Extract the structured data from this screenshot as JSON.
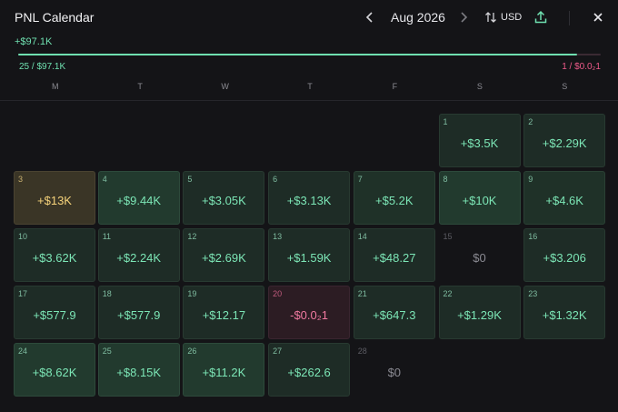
{
  "header": {
    "title": "PNL Calendar",
    "prev_icon": "chevron-left-icon",
    "month": "Aug 2026",
    "next_icon": "chevron-right-icon",
    "currency_icon": "swap-vertical-icon",
    "currency": "USD",
    "export_icon": "share-icon",
    "close_icon": "close-icon"
  },
  "summary": {
    "total": "+$97.1K",
    "win_ratio": 0.96,
    "win_text": "25 / $97.1K",
    "loss_text": "1 / $0.0₂1",
    "colors": {
      "positive": "#6fe0b0",
      "negative": "#ef5a8a"
    }
  },
  "weekdays": [
    "M",
    "T",
    "W",
    "T",
    "F",
    "S",
    "S"
  ],
  "days": [
    {
      "day": "1",
      "value": "+$3.5K",
      "kind": "pos"
    },
    {
      "day": "2",
      "value": "+$2.29K",
      "kind": "pos"
    },
    {
      "day": "3",
      "value": "+$13K",
      "kind": "best"
    },
    {
      "day": "4",
      "value": "+$9.44K",
      "kind": "pos-strong"
    },
    {
      "day": "5",
      "value": "+$3.05K",
      "kind": "pos"
    },
    {
      "day": "6",
      "value": "+$3.13K",
      "kind": "pos"
    },
    {
      "day": "7",
      "value": "+$5.2K",
      "kind": "pos-mid"
    },
    {
      "day": "8",
      "value": "+$10K",
      "kind": "pos-strong"
    },
    {
      "day": "9",
      "value": "+$4.6K",
      "kind": "pos-mid"
    },
    {
      "day": "10",
      "value": "+$3.62K",
      "kind": "pos"
    },
    {
      "day": "11",
      "value": "+$2.24K",
      "kind": "pos"
    },
    {
      "day": "12",
      "value": "+$2.69K",
      "kind": "pos"
    },
    {
      "day": "13",
      "value": "+$1.59K",
      "kind": "pos"
    },
    {
      "day": "14",
      "value": "+$48.27",
      "kind": "pos"
    },
    {
      "day": "15",
      "value": "$0",
      "kind": "zero"
    },
    {
      "day": "16",
      "value": "+$3.206",
      "kind": "pos"
    },
    {
      "day": "17",
      "value": "+$577.9",
      "kind": "pos"
    },
    {
      "day": "18",
      "value": "+$577.9",
      "kind": "pos"
    },
    {
      "day": "19",
      "value": "+$12.17",
      "kind": "pos"
    },
    {
      "day": "20",
      "value": "-$0.0₂1",
      "kind": "neg"
    },
    {
      "day": "21",
      "value": "+$647.3",
      "kind": "pos"
    },
    {
      "day": "22",
      "value": "+$1.29K",
      "kind": "pos"
    },
    {
      "day": "23",
      "value": "+$1.32K",
      "kind": "pos"
    },
    {
      "day": "24",
      "value": "+$8.62K",
      "kind": "pos-strong"
    },
    {
      "day": "25",
      "value": "+$8.15K",
      "kind": "pos-strong"
    },
    {
      "day": "26",
      "value": "+$11.2K",
      "kind": "pos-strong"
    },
    {
      "day": "27",
      "value": "+$262.6",
      "kind": "pos"
    },
    {
      "day": "28",
      "value": "$0",
      "kind": "zero"
    }
  ],
  "first_weekday_index": 5
}
